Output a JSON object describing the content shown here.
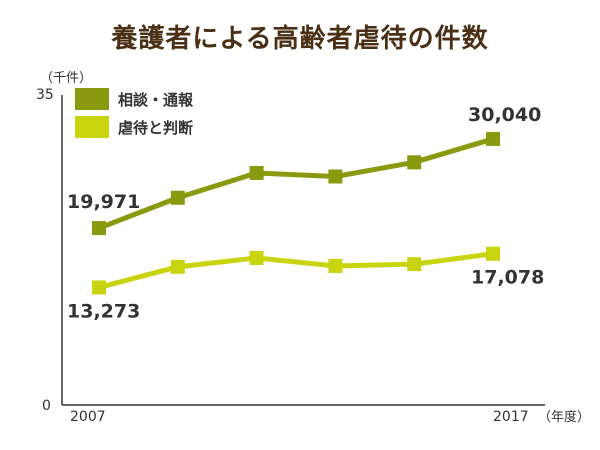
{
  "title": "養護者による高齢者虐待の件数",
  "colors": {
    "series1": "#8a9a0f",
    "series2": "#c9d40e",
    "title": "#4a2f14",
    "axis": "#333333"
  },
  "chart_data": {
    "type": "line",
    "title": "養護者による高齢者虐待の件数",
    "x_unit": "（年度）",
    "y_unit": "（千件）",
    "x": [
      2007,
      2009,
      2011,
      2013,
      2015,
      2017
    ],
    "x_tick_labels": [
      "2007",
      "2017"
    ],
    "y_tick_labels": [
      "35",
      "0"
    ],
    "ylim": [
      0,
      35
    ],
    "grid": false,
    "legend_position": "top-left",
    "series": [
      {
        "name": "相談・通報",
        "values": [
          19.971,
          23.4,
          26.2,
          25.8,
          27.4,
          30.04
        ],
        "color": "#8a9a0f",
        "labels": [
          "19,971",
          "",
          "",
          "",
          "",
          "30,040"
        ]
      },
      {
        "name": "虐待と判断",
        "values": [
          13.273,
          15.6,
          16.6,
          15.7,
          15.9,
          17.078
        ],
        "color": "#c9d40e",
        "labels": [
          "13,273",
          "",
          "",
          "",
          "",
          "17,078"
        ]
      }
    ]
  }
}
